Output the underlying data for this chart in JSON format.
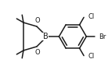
{
  "bg_color": "#ffffff",
  "line_color": "#1a1a1a",
  "line_width": 1.1,
  "text_color": "#1a1a1a",
  "font_size": 6.0,
  "figsize": [
    1.38,
    0.94
  ],
  "dpi": 100,
  "xlim": [
    0,
    138
  ],
  "ylim": [
    0,
    94
  ]
}
